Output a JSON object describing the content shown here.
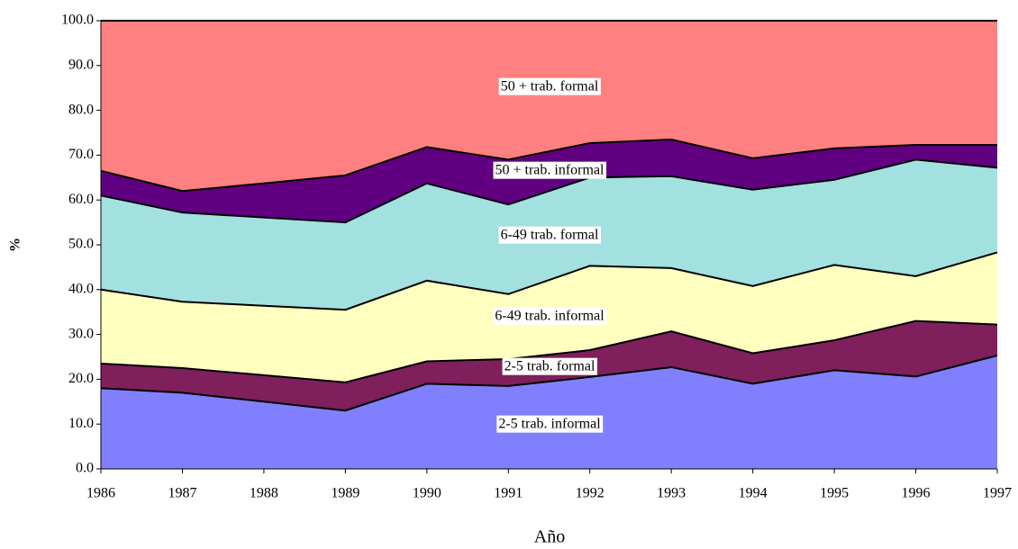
{
  "chart_data": {
    "type": "stacked-area",
    "x_label": "Año",
    "y_label": "%",
    "x": [
      1986,
      1987,
      1988,
      1989,
      1990,
      1991,
      1992,
      1993,
      1994,
      1995,
      1996,
      1997
    ],
    "xlim": [
      1986,
      1997
    ],
    "xticks": [
      1986,
      1987,
      1988,
      1989,
      1990,
      1991,
      1992,
      1993,
      1994,
      1995,
      1996,
      1997
    ],
    "ylim": [
      0,
      100
    ],
    "yticks": [
      {
        "value": 0,
        "label": "0.0"
      },
      {
        "value": 10,
        "label": "10.0"
      },
      {
        "value": 20,
        "label": "20.0"
      },
      {
        "value": 30,
        "label": "30.0"
      },
      {
        "value": 40,
        "label": "40.0"
      },
      {
        "value": 50,
        "label": "50.0"
      },
      {
        "value": 60,
        "label": "60.0"
      },
      {
        "value": 70,
        "label": "70.0"
      },
      {
        "value": 80,
        "label": "80.0"
      },
      {
        "value": 90,
        "label": "90.0"
      },
      {
        "value": 100,
        "label": "100.0"
      }
    ],
    "series": [
      {
        "name": "2-5 trab. informal",
        "color": "#8080ff",
        "values": [
          18.0,
          17.0,
          15.0,
          13.0,
          19.0,
          18.5,
          20.5,
          22.7,
          19.0,
          22.0,
          20.6,
          25.3
        ]
      },
      {
        "name": "2-5 trab. formal",
        "color": "#7f1f5c",
        "values": [
          5.5,
          5.5,
          5.9,
          6.3,
          5.0,
          6.0,
          6.0,
          8.0,
          6.8,
          6.7,
          12.4,
          6.9
        ]
      },
      {
        "name": "6-49 trab. informal",
        "color": "#ffffc0",
        "values": [
          16.5,
          14.8,
          15.5,
          16.2,
          18.0,
          14.5,
          18.8,
          14.1,
          15.0,
          16.8,
          10.0,
          16.1
        ]
      },
      {
        "name": "6-49 trab. formal",
        "color": "#a3e0e0",
        "values": [
          21.0,
          19.9,
          19.7,
          19.5,
          21.7,
          20.0,
          19.7,
          20.5,
          21.5,
          19.0,
          26.0,
          18.9
        ]
      },
      {
        "name": "50 + trab. informal",
        "color": "#600080",
        "values": [
          5.5,
          4.8,
          7.6,
          10.5,
          8.1,
          10.0,
          7.7,
          8.2,
          7.0,
          7.0,
          3.3,
          5.1
        ]
      },
      {
        "name": "50 + trab. formal",
        "color": "#ff8080",
        "values": [
          33.5,
          38.0,
          36.3,
          34.5,
          28.2,
          31.0,
          27.3,
          26.5,
          30.7,
          28.5,
          27.7,
          27.7
        ]
      }
    ]
  }
}
